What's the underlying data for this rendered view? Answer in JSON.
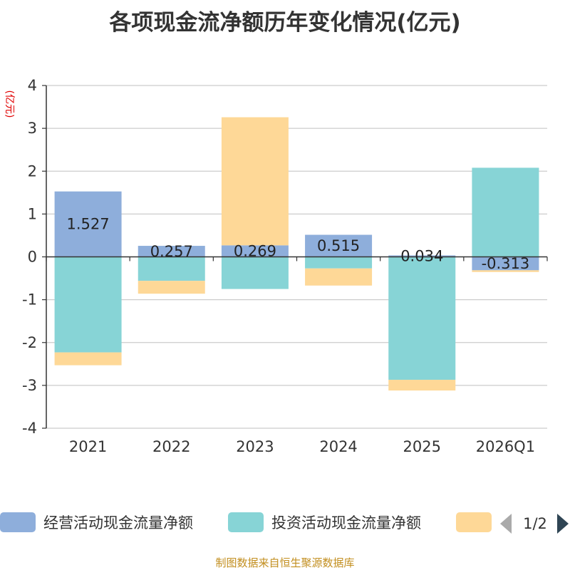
{
  "title": "各项现金流净额历年变化情况(亿元)",
  "source": "制图数据来自恒生聚源数据库",
  "legend_page": "1/2",
  "colors": {
    "operating": "#8eaedb",
    "investing": "#87d4d6",
    "financing": "#fed897"
  },
  "chart_data": {
    "type": "bar",
    "stacked": true,
    "title": "各项现金流净额历年变化情况(亿元)",
    "ylabel": "(亿元)",
    "xlabel": "",
    "ylim": [
      -4,
      4
    ],
    "yticks": [
      -4,
      -3,
      -2,
      -1,
      0,
      1,
      2,
      3,
      4
    ],
    "categories": [
      "2021",
      "2022",
      "2023",
      "2024",
      "2025",
      "2026Q1"
    ],
    "series": [
      {
        "name": "经营活动现金流量净额",
        "values": [
          1.527,
          0.257,
          0.269,
          0.515,
          0.034,
          -0.313
        ],
        "data_labels": [
          "1.527",
          "0.257",
          "0.269",
          "0.515",
          "0.034",
          "-0.313"
        ]
      },
      {
        "name": "投资活动现金流量净额",
        "values": [
          -2.23,
          -0.56,
          -0.75,
          -0.27,
          -2.87,
          2.08
        ]
      },
      {
        "name": "",
        "values": [
          -0.3,
          -0.3,
          2.99,
          -0.4,
          -0.25,
          -0.04
        ]
      }
    ],
    "grid": true,
    "legend_position": "bottom"
  }
}
